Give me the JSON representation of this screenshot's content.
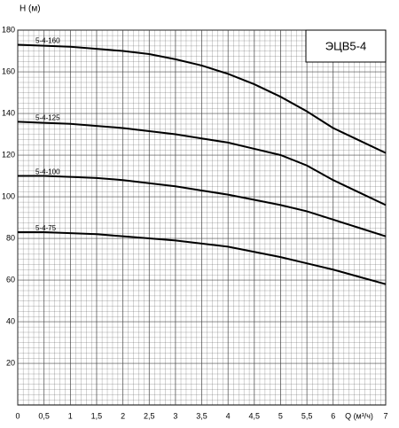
{
  "chart_data": {
    "type": "line",
    "title": "ЭЦВ5-4",
    "y_label": "H (м)",
    "x_label": "Q (м³/ч)",
    "x": [
      0,
      0.5,
      1,
      1.5,
      2,
      2.5,
      3,
      3.5,
      4,
      4.5,
      5,
      5.5,
      6,
      6.5,
      7
    ],
    "series": [
      {
        "name": "5-4-160",
        "color": "#000000",
        "values": [
          173,
          172.5,
          172,
          171,
          170,
          168.5,
          166,
          163,
          159,
          154,
          148,
          141,
          133,
          127,
          121
        ]
      },
      {
        "name": "5-4-125",
        "color": "#000000",
        "values": [
          136,
          135.5,
          135,
          134,
          133,
          131.5,
          130,
          128,
          126,
          123,
          120,
          115,
          108,
          102,
          96
        ]
      },
      {
        "name": "5-4-100",
        "color": "#000000",
        "values": [
          110,
          110,
          109.5,
          109,
          108,
          106.5,
          105,
          103,
          101,
          98.5,
          96,
          93,
          89,
          85,
          81
        ]
      },
      {
        "name": "5-4-75",
        "color": "#000000",
        "values": [
          83,
          83,
          82.5,
          82,
          81,
          80,
          79,
          77.5,
          76,
          73.5,
          71,
          68,
          65,
          61.5,
          58
        ]
      }
    ],
    "xlim": [
      0,
      7
    ],
    "ylim": [
      0,
      180
    ],
    "xticks": [
      0,
      {
        "value": 0.5,
        "label": "0,5"
      },
      1,
      {
        "value": 1.5,
        "label": "1,5"
      },
      2,
      {
        "value": 2.5,
        "label": "2,5"
      },
      3,
      {
        "value": 3.5,
        "label": "3,5"
      },
      4,
      {
        "value": 4.5,
        "label": "4,5"
      },
      5,
      {
        "value": 5.5,
        "label": "5,5"
      },
      6,
      7
    ],
    "yticks": [
      20,
      40,
      60,
      80,
      100,
      120,
      140,
      160,
      180
    ],
    "grid": true
  }
}
